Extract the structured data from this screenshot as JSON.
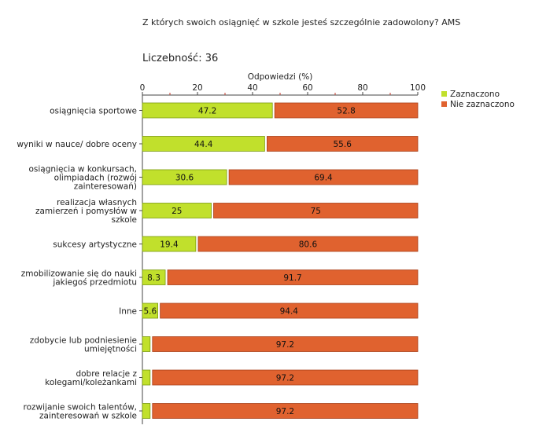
{
  "header": {
    "question": "Z których swoich osiągnięć w szkole jesteś szczególnie zadowolony? AMS",
    "count_label": "Liczebność:",
    "count_value": "36"
  },
  "chart_data": {
    "type": "bar",
    "orientation": "horizontal",
    "stacked": true,
    "xlabel": "Odpowiedzi (%)",
    "xlim": [
      0,
      100
    ],
    "xticks": [
      0,
      20,
      40,
      60,
      80,
      100
    ],
    "categories": [
      [
        "osiągnięcia sportowe"
      ],
      [
        "wyniki w nauce/ dobre oceny"
      ],
      [
        "osiągnięcia w konkursach,",
        "olimpiadach (rozwój",
        "zainteresowań)"
      ],
      [
        "realizacja własnych",
        "zamierzeń i pomysłów w",
        "szkole"
      ],
      [
        "sukcesy artystyczne"
      ],
      [
        "zmobilizowanie się do nauki",
        "jakiegoś przedmiotu"
      ],
      [
        "Inne"
      ],
      [
        "zdobycie lub podniesienie",
        "umiejętności"
      ],
      [
        "dobre relacje z",
        "kolegami/koleżankami"
      ],
      [
        "rozwijanie swoich talentów,",
        "zainteresowań w szkole"
      ]
    ],
    "series": [
      {
        "name": "Zaznaczono",
        "color": "#c1e02c",
        "values": [
          47.2,
          44.4,
          30.6,
          25,
          19.4,
          8.3,
          5.6,
          2.8,
          2.8,
          2.8
        ],
        "labels": [
          "47.2",
          "44.4",
          "30.6",
          "25",
          "19.4",
          "8.3",
          "5.6",
          "",
          "",
          ""
        ]
      },
      {
        "name": "Nie zaznaczono",
        "color": "#e0622f",
        "values": [
          52.8,
          55.6,
          69.4,
          75,
          80.6,
          91.7,
          94.4,
          97.2,
          97.2,
          97.2
        ],
        "labels": [
          "52.8",
          "55.6",
          "69.4",
          "75",
          "80.6",
          "91.7",
          "94.4",
          "97.2",
          "97.2",
          "97.2"
        ]
      }
    ],
    "legend": "top-right",
    "grid": false
  }
}
